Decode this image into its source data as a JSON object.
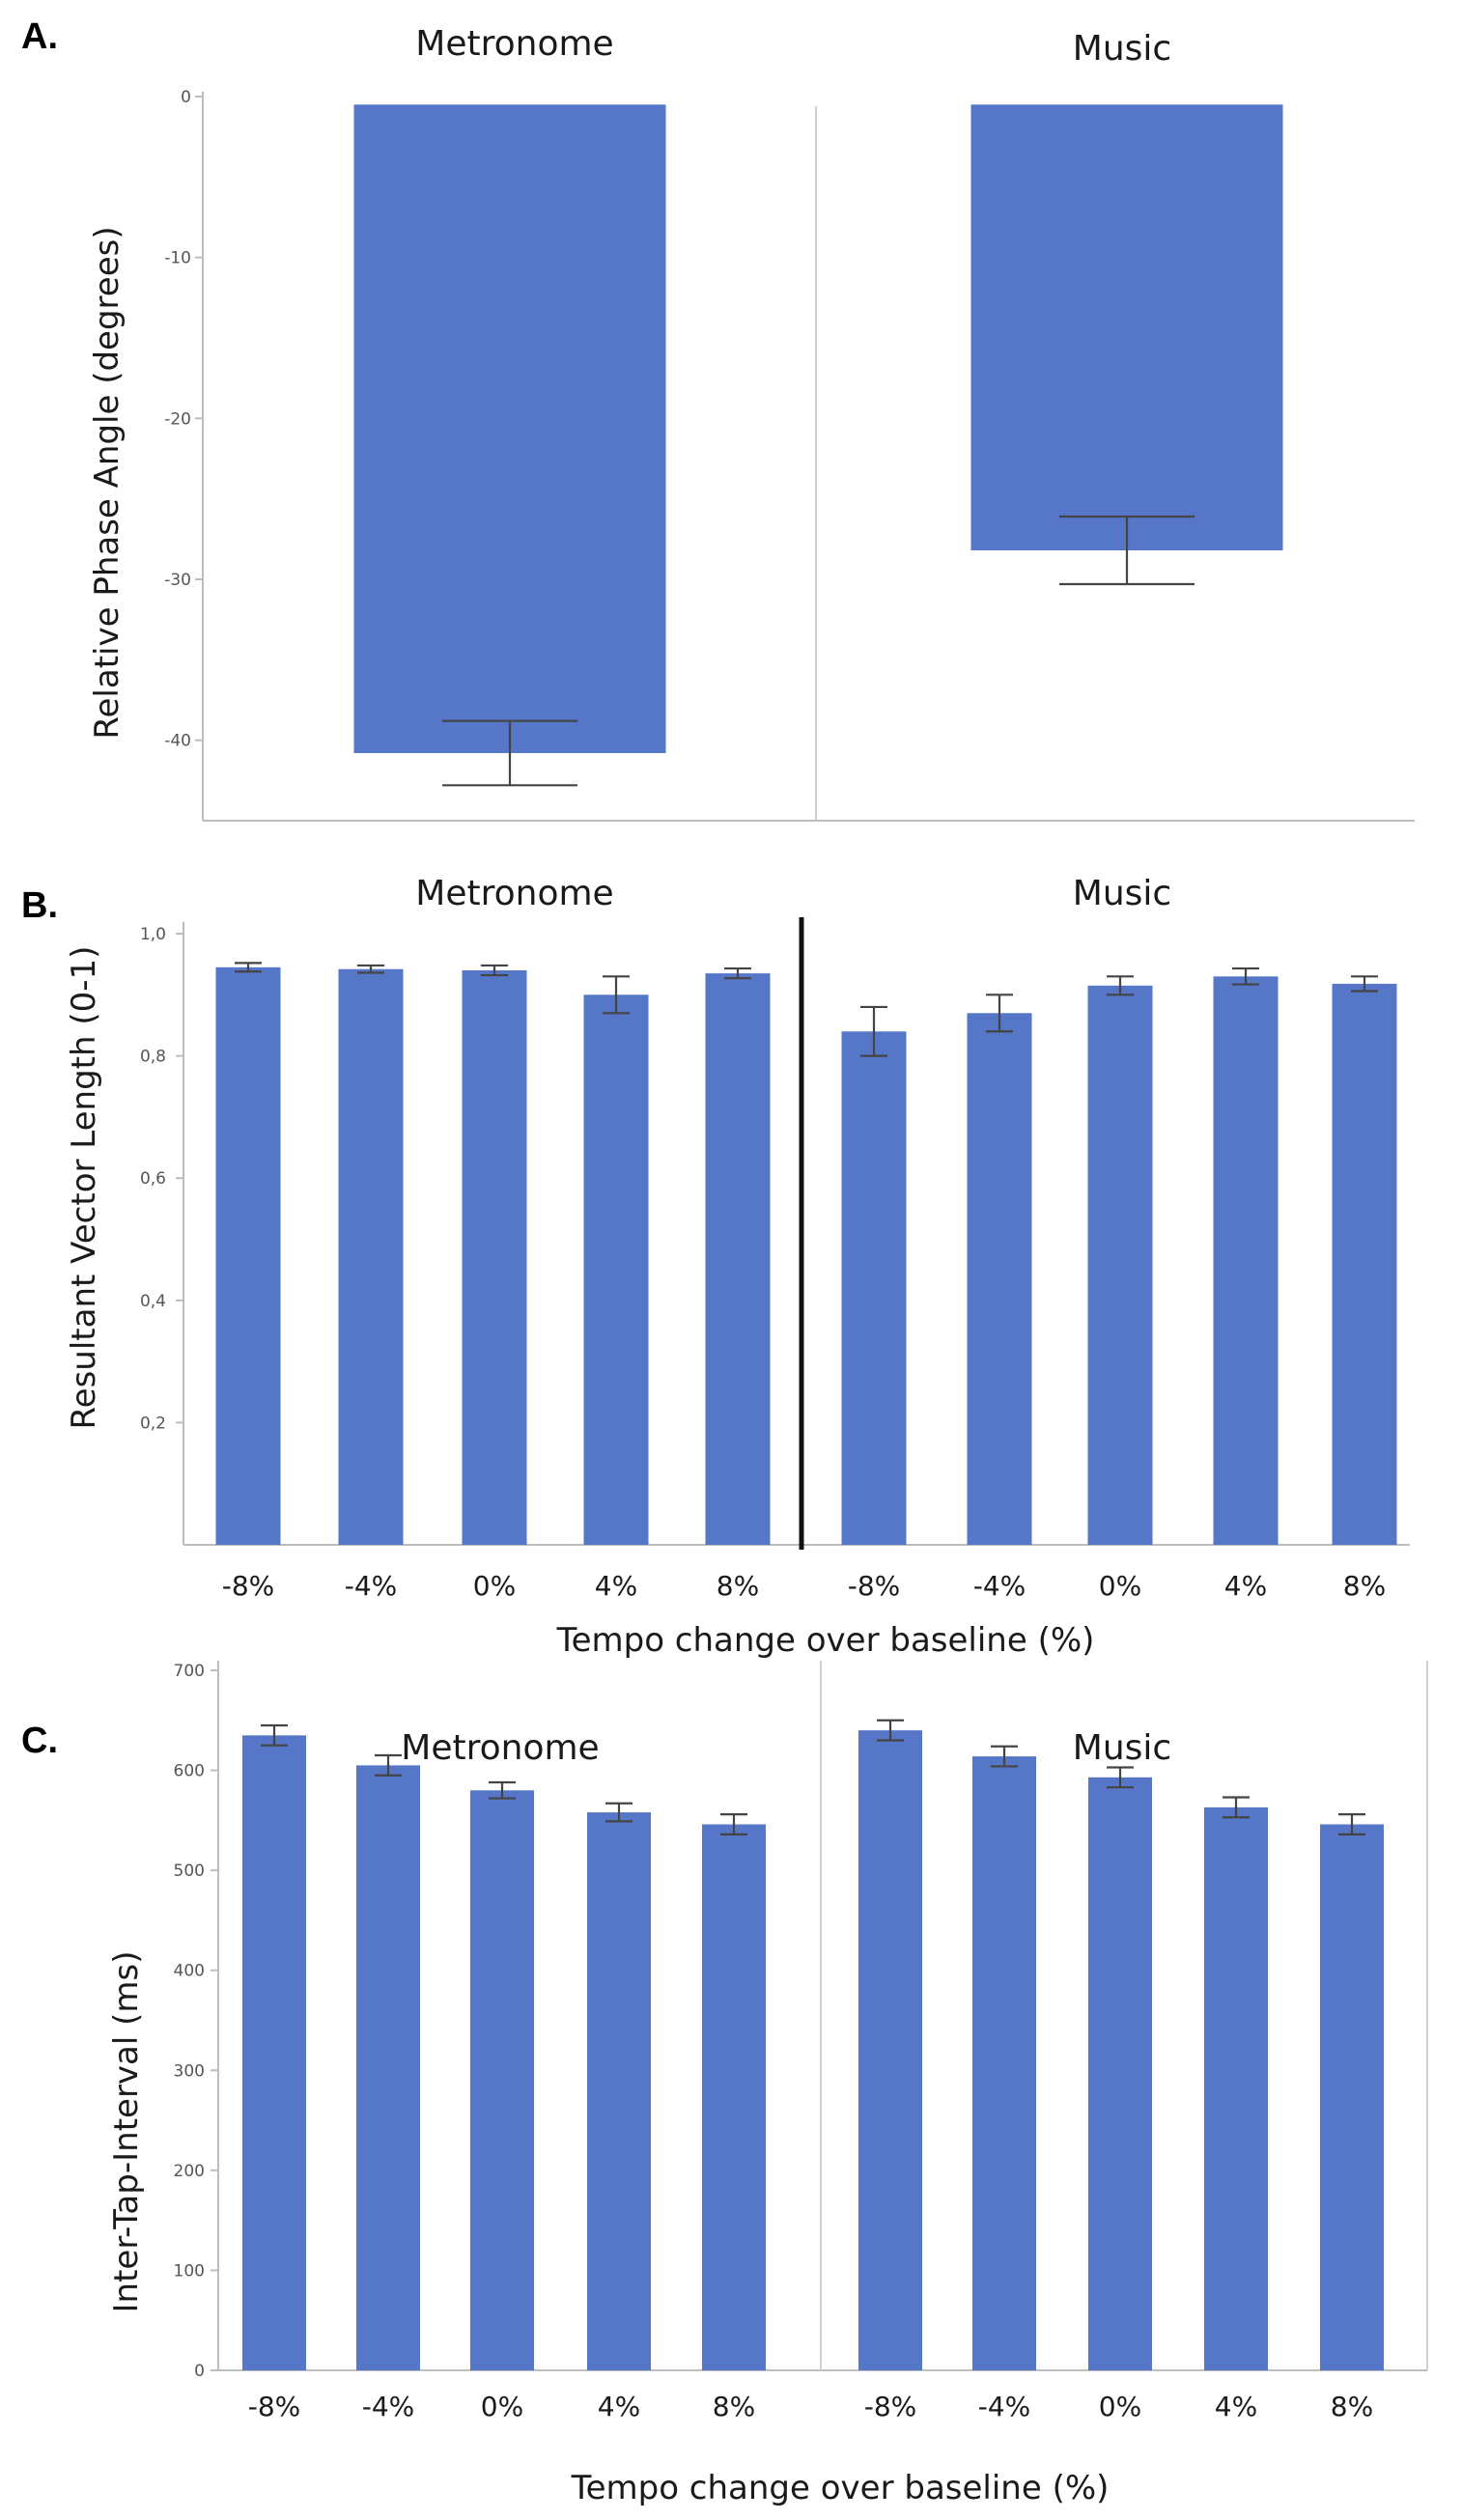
{
  "chart_data": [
    {
      "panel": "A.",
      "type": "bar",
      "groups": [
        "Metronome",
        "Music"
      ],
      "categories": [
        "Metronome",
        "Music"
      ],
      "values": [
        -40.8,
        -28.2
      ],
      "errors": [
        2.0,
        2.1
      ],
      "ylabel": "Relative Phase Angle (degrees)",
      "xlabel": "",
      "ylim": [
        -45,
        0
      ],
      "yticks": [
        0,
        -10,
        -20,
        -30,
        -40
      ],
      "ytick_labels": [
        "0",
        "-10",
        "-20",
        "-30",
        "-40"
      ]
    },
    {
      "panel": "B.",
      "type": "bar",
      "groups": [
        "Metronome",
        "Music"
      ],
      "categories": [
        "-8%",
        "-4%",
        "0%",
        "4%",
        "8%"
      ],
      "series": [
        {
          "name": "Metronome",
          "values": [
            0.945,
            0.942,
            0.94,
            0.9,
            0.935
          ],
          "errors": [
            0.007,
            0.006,
            0.008,
            0.03,
            0.008
          ]
        },
        {
          "name": "Music",
          "values": [
            0.84,
            0.87,
            0.915,
            0.93,
            0.918
          ],
          "errors": [
            0.04,
            0.03,
            0.015,
            0.013,
            0.012
          ]
        }
      ],
      "ylabel": "Resultant Vector Length (0-1)",
      "xlabel": "Tempo change over baseline (%)",
      "ylim": [
        0,
        1.0
      ],
      "yticks": [
        0.2,
        0.4,
        0.6,
        0.8,
        1.0
      ],
      "ytick_labels": [
        "0,2",
        "0,4",
        "0,6",
        "0,8",
        "1,0"
      ]
    },
    {
      "panel": "C.",
      "type": "bar",
      "groups": [
        "Metronome",
        "Music"
      ],
      "categories": [
        "-8%",
        "-4%",
        "0%",
        "4%",
        "8%"
      ],
      "series": [
        {
          "name": "Metronome",
          "values": [
            635,
            605,
            580,
            558,
            546
          ],
          "errors": [
            10,
            10,
            8,
            9,
            10
          ]
        },
        {
          "name": "Music",
          "values": [
            640,
            614,
            593,
            563,
            546
          ],
          "errors": [
            10,
            10,
            10,
            10,
            10
          ]
        }
      ],
      "ylabel": "Inter-Tap-Interval (ms)",
      "xlabel": "Tempo change over baseline (%)",
      "ylim": [
        0,
        700
      ],
      "yticks": [
        0,
        100,
        200,
        300,
        400,
        500,
        600,
        700
      ],
      "ytick_labels": [
        "0",
        "100",
        "200",
        "300",
        "400",
        "500",
        "600",
        "700"
      ]
    }
  ],
  "colors": {
    "bar": "#5677c7",
    "error": "#444444",
    "axis": "#bdbdbd"
  }
}
